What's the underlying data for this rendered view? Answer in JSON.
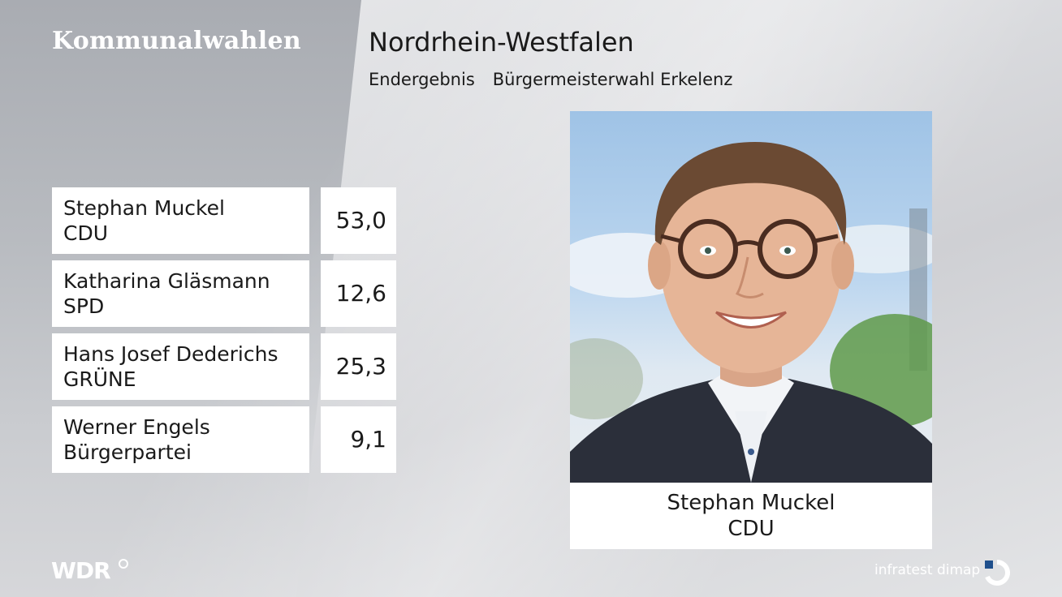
{
  "header": {
    "brand": "Kommunalwahlen",
    "title": "Nordrhein-Westfalen",
    "subtitle_status": "Endergebnis",
    "subtitle_election": "Bürgermeisterwahl Erkelenz"
  },
  "results": [
    {
      "name": "Stephan Muckel",
      "party": "CDU",
      "percent": "53,0"
    },
    {
      "name": "Katharina Gläsmann",
      "party": "SPD",
      "percent": "12,6"
    },
    {
      "name": "Hans Josef Dederichs",
      "party": "GRÜNE",
      "percent": "25,3"
    },
    {
      "name": "Werner Engels",
      "party": "Bürgerpartei",
      "percent": "9,1"
    }
  ],
  "winner": {
    "name": "Stephan Muckel",
    "party": "CDU"
  },
  "footer": {
    "broadcaster": "WDR",
    "institute": "infratest dimap"
  },
  "colors": {
    "panel": "#ffffff",
    "text": "#1a1a1a",
    "accent_blue": "#1f4f8c"
  },
  "icons": {
    "wdr_mark": "registered-mark-icon",
    "institute_logo": "infratest-dimap-logo-icon"
  }
}
